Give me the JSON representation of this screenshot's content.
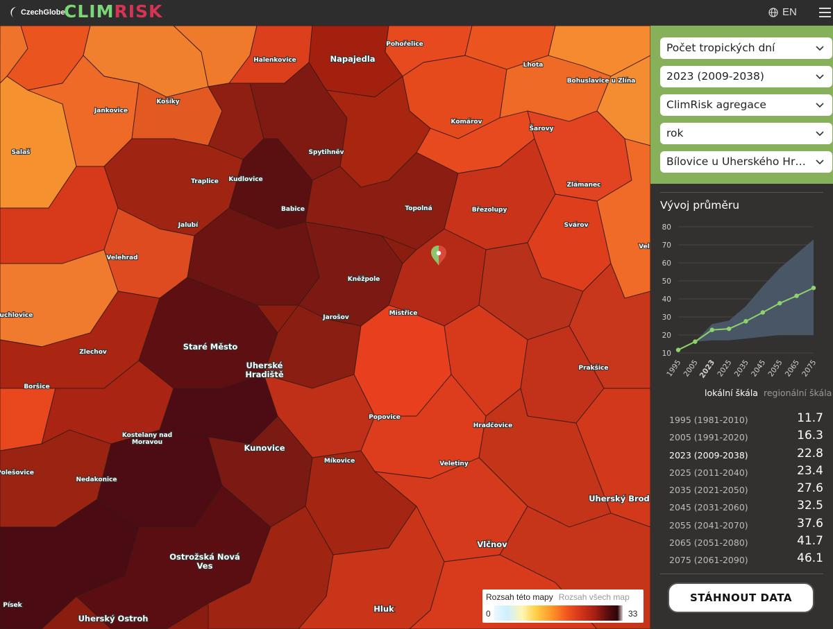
{
  "header": {
    "czechglobe_logo": "CzechGlobe",
    "brand_logo": "CLIMRISK",
    "language_label": "EN",
    "globe_icon": "globe-icon",
    "menu_icon": "hamburger-icon"
  },
  "filters": {
    "indicator": "Počet tropických dní",
    "period": "2023 (2009-2038)",
    "aggregation": "ClimRisk agregace",
    "time_scale": "rok",
    "location": "Bílovice u Uherského Hradiště",
    "chevron_icon": "chevron-down-icon"
  },
  "chart": {
    "title": "Vývoj průměru",
    "scale_tabs": {
      "active": "lokální škála",
      "inactive": "regionální škála"
    }
  },
  "chart_data": {
    "type": "line",
    "title": "Vývoj průměru",
    "x": [
      1995,
      2005,
      2023,
      2025,
      2035,
      2045,
      2055,
      2065,
      2075
    ],
    "x_tick_labels": [
      "1995",
      "2005",
      "2023",
      "2025",
      "2035",
      "2045",
      "2055",
      "2065",
      "2075"
    ],
    "series": [
      {
        "values": [
          11.7,
          16.3,
          22.8,
          23.4,
          27.6,
          32.5,
          37.6,
          41.7,
          46.1
        ],
        "color": "#8ed36b"
      }
    ],
    "range_band": {
      "upper": [
        11.7,
        16.3,
        26,
        28,
        36,
        47,
        57,
        65,
        73
      ],
      "lower": [
        11.7,
        16.3,
        17,
        17,
        18,
        19,
        20,
        20,
        20
      ],
      "color": "#4a5968"
    },
    "ylim": [
      10,
      80
    ],
    "y_ticks": [
      10,
      20,
      30,
      40,
      50,
      60,
      70,
      80
    ],
    "grid": true,
    "xlabel": "",
    "ylabel": ""
  },
  "table": [
    {
      "period": "1995 (1981-2010)",
      "value": "11.7"
    },
    {
      "period": "2005 (1991-2020)",
      "value": "16.3"
    },
    {
      "period": "2023 (2009-2038)",
      "value": "22.8"
    },
    {
      "period": "2025 (2011-2040)",
      "value": "23.4"
    },
    {
      "period": "2035 (2021-2050)",
      "value": "27.6"
    },
    {
      "period": "2045 (2031-2060)",
      "value": "32.5"
    },
    {
      "period": "2055 (2041-2070)",
      "value": "37.6"
    },
    {
      "period": "2065 (2051-2080)",
      "value": "41.7"
    },
    {
      "period": "2075 (2061-2090)",
      "value": "46.1"
    }
  ],
  "download_label": "STÁHNOUT DATA",
  "legend": {
    "tab_active": "Rozsah této mapy",
    "tab_inactive": "Rozsah všech map",
    "min": "0",
    "max": "33"
  },
  "map": {
    "place_labels": [
      "Pohořelice",
      "Halenkovice",
      "Napajedla",
      "Lhota",
      "Bohuslavice u Zlína",
      "Jankovice",
      "Košíky",
      "Komárov",
      "Šarovy",
      "Salaš",
      "Spytihněv",
      "Traplice",
      "Kudlovice",
      "Babice",
      "Topolná",
      "Březolupy",
      "Zlámanec",
      "Jalubí",
      "Svárov",
      "Velehrad",
      "Kněžpole",
      "Vel",
      "Ruchlovice",
      "Jarošov",
      "Mistřice",
      "Staré Město",
      "Zlechov",
      "Uherské Hradiště",
      "Prakšice",
      "Boršice",
      "Popovice",
      "Kostelany nad Moravou",
      "Kunovice",
      "Hradčovice",
      "Polešovice",
      "Nedakonice",
      "Míkovice",
      "Veletiny",
      "Uherský Brod",
      "Ostrožská Nová Ves",
      "Vlčnov",
      "Hluk",
      "Uherský Ostroh",
      "Písek"
    ],
    "marker_icon": "location-pin-icon"
  }
}
